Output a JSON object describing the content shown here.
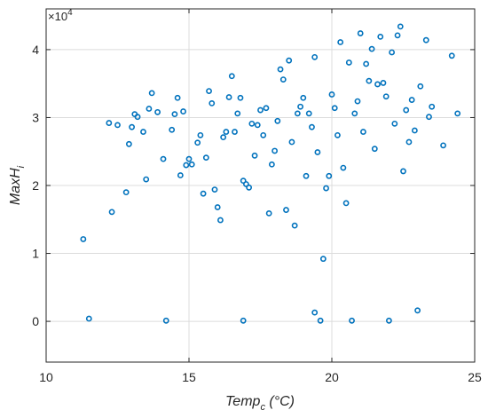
{
  "chart_data": {
    "type": "scatter",
    "xlabel": "Temp_c (°C)",
    "ylabel": "MaxH_i",
    "exponent_label": "×10^4",
    "xlim": [
      10,
      25
    ],
    "ylim": [
      -0.6,
      4.6
    ],
    "y_scale_multiplier": 10000,
    "x_ticks": [
      10,
      15,
      20,
      25
    ],
    "y_ticks": [
      0,
      1,
      2,
      3,
      4
    ],
    "grid": true,
    "marker": "circle-open",
    "color": "#0072BD",
    "points": [
      [
        11.3,
        1.21
      ],
      [
        11.5,
        0.04
      ],
      [
        12.2,
        2.92
      ],
      [
        12.3,
        1.61
      ],
      [
        12.5,
        2.89
      ],
      [
        12.8,
        1.9
      ],
      [
        12.9,
        2.61
      ],
      [
        13.0,
        2.86
      ],
      [
        13.1,
        3.05
      ],
      [
        13.2,
        3.01
      ],
      [
        13.4,
        2.79
      ],
      [
        13.5,
        2.09
      ],
      [
        13.6,
        3.13
      ],
      [
        13.7,
        3.36
      ],
      [
        13.9,
        3.08
      ],
      [
        14.1,
        2.39
      ],
      [
        14.2,
        0.01
      ],
      [
        14.4,
        2.82
      ],
      [
        14.5,
        3.05
      ],
      [
        14.6,
        3.29
      ],
      [
        14.7,
        2.15
      ],
      [
        14.8,
        3.09
      ],
      [
        14.9,
        2.3
      ],
      [
        15.0,
        2.39
      ],
      [
        15.1,
        2.31
      ],
      [
        15.3,
        2.63
      ],
      [
        15.4,
        2.74
      ],
      [
        15.5,
        1.88
      ],
      [
        15.6,
        2.41
      ],
      [
        15.7,
        3.39
      ],
      [
        15.8,
        3.21
      ],
      [
        15.9,
        1.94
      ],
      [
        16.0,
        1.68
      ],
      [
        16.1,
        1.49
      ],
      [
        16.2,
        2.71
      ],
      [
        16.3,
        2.79
      ],
      [
        16.4,
        3.3
      ],
      [
        16.5,
        3.61
      ],
      [
        16.6,
        2.79
      ],
      [
        16.7,
        3.06
      ],
      [
        16.8,
        3.29
      ],
      [
        16.9,
        0.01
      ],
      [
        16.9,
        2.07
      ],
      [
        17.0,
        2.02
      ],
      [
        17.1,
        1.97
      ],
      [
        17.2,
        2.91
      ],
      [
        17.3,
        2.44
      ],
      [
        17.4,
        2.89
      ],
      [
        17.5,
        3.11
      ],
      [
        17.6,
        2.74
      ],
      [
        17.7,
        3.14
      ],
      [
        17.8,
        1.59
      ],
      [
        17.9,
        2.31
      ],
      [
        18.0,
        2.51
      ],
      [
        18.1,
        2.95
      ],
      [
        18.2,
        3.71
      ],
      [
        18.3,
        3.56
      ],
      [
        18.4,
        1.64
      ],
      [
        18.5,
        3.84
      ],
      [
        18.6,
        2.64
      ],
      [
        18.7,
        1.41
      ],
      [
        18.8,
        3.06
      ],
      [
        18.9,
        3.16
      ],
      [
        19.0,
        3.29
      ],
      [
        19.1,
        2.14
      ],
      [
        19.2,
        3.06
      ],
      [
        19.3,
        2.86
      ],
      [
        19.4,
        3.89
      ],
      [
        19.4,
        0.13
      ],
      [
        19.5,
        2.49
      ],
      [
        19.6,
        0.01
      ],
      [
        19.7,
        0.92
      ],
      [
        19.8,
        1.96
      ],
      [
        19.9,
        2.14
      ],
      [
        20.0,
        3.34
      ],
      [
        20.1,
        3.14
      ],
      [
        20.2,
        2.74
      ],
      [
        20.3,
        4.11
      ],
      [
        20.4,
        2.26
      ],
      [
        20.5,
        1.74
      ],
      [
        20.6,
        3.81
      ],
      [
        20.7,
        0.01
      ],
      [
        20.8,
        3.06
      ],
      [
        20.9,
        3.24
      ],
      [
        21.0,
        4.24
      ],
      [
        21.1,
        2.79
      ],
      [
        21.2,
        3.79
      ],
      [
        21.3,
        3.54
      ],
      [
        21.4,
        4.01
      ],
      [
        21.5,
        2.54
      ],
      [
        21.6,
        3.49
      ],
      [
        21.7,
        4.19
      ],
      [
        21.8,
        3.51
      ],
      [
        21.9,
        3.31
      ],
      [
        22.0,
        0.01
      ],
      [
        22.1,
        3.96
      ],
      [
        22.2,
        2.91
      ],
      [
        22.3,
        4.21
      ],
      [
        22.4,
        4.34
      ],
      [
        22.5,
        2.21
      ],
      [
        22.6,
        3.11
      ],
      [
        22.7,
        2.64
      ],
      [
        22.8,
        3.26
      ],
      [
        22.9,
        2.81
      ],
      [
        23.0,
        0.16
      ],
      [
        23.1,
        3.46
      ],
      [
        23.3,
        4.14
      ],
      [
        23.4,
        3.01
      ],
      [
        23.5,
        3.16
      ],
      [
        23.9,
        2.59
      ],
      [
        24.2,
        3.91
      ],
      [
        24.4,
        3.06
      ]
    ]
  }
}
